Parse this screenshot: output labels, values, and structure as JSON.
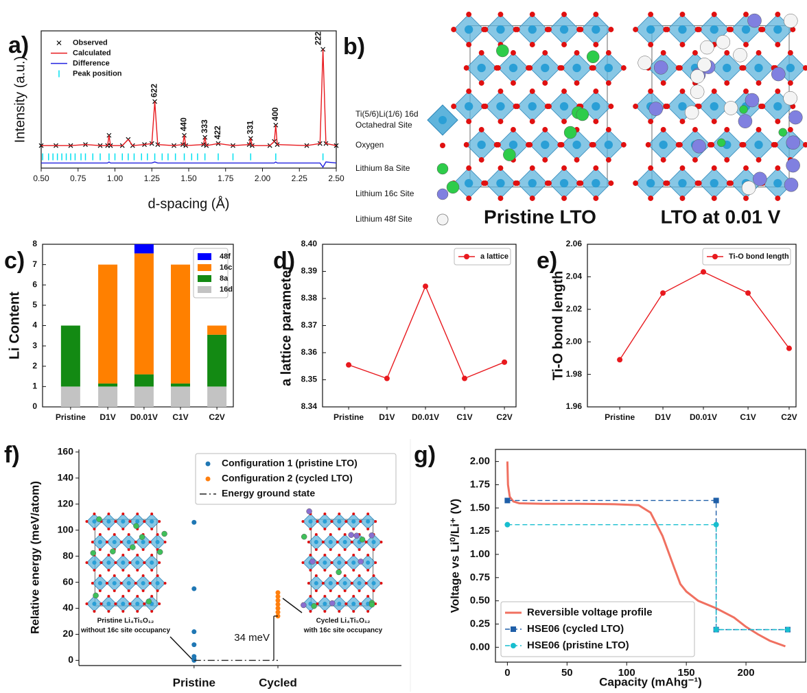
{
  "chart_data": [
    {
      "type": "line",
      "panel_label": "a)",
      "xlabel": "d-spacing (Å)",
      "ylabel": "Intensity (a.u.)",
      "xlim": [
        0.5,
        2.5
      ],
      "ylim": [
        -16,
        118
      ],
      "xticks": [
        {
          "value": 0.5,
          "label": "0.50"
        },
        0.75,
        {
          "value": 1,
          "label": "1.00"
        },
        1.25,
        {
          "value": 1.5,
          "label": "1.50"
        },
        1.75,
        {
          "value": 2,
          "label": "2.00"
        },
        2.25,
        {
          "value": 2.5,
          "label": "2.50"
        }
      ],
      "legend": "upper left",
      "x": [
        0.5,
        0.6,
        0.7,
        0.8,
        0.9,
        0.95,
        0.96,
        0.97,
        1.05,
        1.09,
        1.12,
        1.2,
        1.25,
        1.27,
        1.29,
        1.4,
        1.46,
        1.47,
        1.48,
        1.6,
        1.61,
        1.62,
        1.7,
        1.8,
        1.91,
        1.92,
        1.93,
        2.05,
        2.08,
        2.09,
        2.1,
        2.3,
        2.39,
        2.41,
        2.43,
        2.5
      ],
      "series": [
        {
          "name": "Observed",
          "color": "#000000",
          "marker": "x",
          "line": false,
          "values": [
            6,
            6,
            6,
            7,
            6,
            6,
            16,
            6,
            6,
            12,
            6,
            7,
            8,
            49,
            7,
            6,
            7,
            16,
            6,
            7,
            14,
            6,
            8,
            6,
            7,
            13,
            6,
            6,
            10,
            26,
            7,
            6,
            8,
            100,
            8,
            6
          ]
        },
        {
          "name": "Calculated",
          "color": "#e8191e",
          "marker": "none",
          "values": [
            6,
            6,
            6,
            7,
            6,
            6,
            16,
            6,
            6,
            12,
            6,
            7,
            8,
            49,
            7,
            6,
            7,
            16,
            6,
            7,
            14,
            6,
            8,
            6,
            7,
            13,
            6,
            6,
            10,
            26,
            7,
            6,
            8,
            100,
            8,
            6
          ]
        },
        {
          "name": "Difference",
          "color": "#2020e0",
          "marker": "none",
          "values": [
            -11,
            -11,
            -11,
            -11,
            -11,
            -11,
            -10,
            -11,
            -11,
            -11,
            -11,
            -11,
            -11,
            -10,
            -11,
            -11,
            -11,
            -11,
            -11,
            -11,
            -11,
            -11,
            -11,
            -11,
            -11,
            -11,
            -11,
            -11,
            -11,
            -10,
            -11,
            -11,
            -11,
            -15,
            -10,
            -11
          ]
        },
        {
          "name": "Peak position",
          "color": "#00e0f0",
          "marker": "tick",
          "x": [
            0.51,
            0.55,
            0.58,
            0.61,
            0.64,
            0.67,
            0.7,
            0.73,
            0.77,
            0.8,
            0.85,
            0.9,
            0.96,
            1.0,
            1.05,
            1.09,
            1.13,
            1.18,
            1.22,
            1.27,
            1.32,
            1.36,
            1.41,
            1.47,
            1.52,
            1.56,
            1.61,
            1.7,
            1.8,
            1.92,
            2.09,
            2.41
          ]
        }
      ],
      "annotations": [
        {
          "text": "622",
          "x": 1.27,
          "y": 49
        },
        {
          "text": "440",
          "x": 1.47,
          "y": 16
        },
        {
          "text": "333",
          "x": 1.61,
          "y": 14
        },
        {
          "text": "422",
          "x": 1.7,
          "y": 8
        },
        {
          "text": "331",
          "x": 1.92,
          "y": 13
        },
        {
          "text": "400",
          "x": 2.09,
          "y": 26
        },
        {
          "text": "222",
          "x": 2.38,
          "y": 100
        }
      ]
    },
    {
      "type": "bar",
      "stacked": true,
      "panel_label": "c)",
      "ylabel": "Li Content",
      "categories": [
        "Pristine",
        "D1V",
        "D0.01V",
        "C1V",
        "C2V"
      ],
      "ylim": [
        0,
        8
      ],
      "yticks": [
        0,
        1,
        2,
        3,
        4,
        5,
        6,
        7,
        8
      ],
      "legend": "upper right",
      "series": [
        {
          "name": "16d",
          "color": "#c3c3c3",
          "values": [
            1,
            1,
            1,
            1,
            1
          ]
        },
        {
          "name": "8a",
          "color": "#138a13",
          "values": [
            3,
            0.15,
            0.6,
            0.15,
            2.55
          ]
        },
        {
          "name": "16c",
          "color": "#ff8000",
          "values": [
            0,
            5.85,
            5.95,
            5.85,
            0.45
          ]
        },
        {
          "name": "48f",
          "color": "#0000ff",
          "values": [
            0,
            0,
            0.45,
            0,
            0
          ]
        }
      ]
    },
    {
      "type": "line",
      "panel_label": "d)",
      "ylabel": "a lattice parameter",
      "categories": [
        "Pristine",
        "D1V",
        "D0.01V",
        "C1V",
        "C2V"
      ],
      "ylim": [
        8.34,
        8.4
      ],
      "yticks": [
        8.34,
        8.35,
        8.36,
        8.37,
        8.38,
        8.39,
        {
          "value": 8.4,
          "label": "8.40"
        }
      ],
      "legend": "upper right",
      "series": [
        {
          "name": "a lattice",
          "color": "#e8191e",
          "marker": "circle",
          "values": [
            8.3555,
            8.3505,
            8.3845,
            8.3505,
            8.3565
          ]
        }
      ]
    },
    {
      "type": "line",
      "panel_label": "e)",
      "ylabel": "Ti-O bond length",
      "categories": [
        "Pristine",
        "D1V",
        "D0.01V",
        "C1V",
        "C2V"
      ],
      "ylim": [
        1.96,
        2.06
      ],
      "yticks": [
        1.96,
        1.98,
        {
          "value": 2,
          "label": "2.00"
        },
        2.02,
        2.04,
        2.06
      ],
      "legend": "upper right",
      "series": [
        {
          "name": "Ti-O bond length",
          "color": "#e8191e",
          "marker": "circle",
          "values": [
            1.989,
            2.03,
            2.043,
            2.03,
            1.996
          ]
        }
      ]
    },
    {
      "type": "scatter",
      "panel_label": "f)",
      "ylabel": "Relative energy (meV/atom)",
      "categories": [
        "Pristine",
        "Cycled"
      ],
      "ylim": [
        -4,
        162
      ],
      "yticks": [
        0,
        20,
        40,
        60,
        80,
        100,
        120,
        140,
        160
      ],
      "legend": "upper right",
      "series": [
        {
          "name": "Configuration 1 (pristine LTO)",
          "color": "#1f77b4",
          "marker": "circle",
          "line": false,
          "x": [
            "Pristine",
            "Pristine",
            "Pristine",
            "Pristine",
            "Pristine",
            "Pristine",
            "Pristine"
          ],
          "values": [
            106,
            55,
            22,
            12,
            3,
            1,
            0
          ]
        },
        {
          "name": "Configuration 2 (cycled LTO)",
          "color": "#ff7f0e",
          "marker": "circle",
          "line": false,
          "x": [
            "Cycled",
            "Cycled",
            "Cycled",
            "Cycled",
            "Cycled",
            "Cycled",
            "Cycled"
          ],
          "values": [
            52,
            49,
            46,
            43,
            40,
            37,
            34
          ]
        },
        {
          "name": "Energy ground state",
          "color": "#222222",
          "marker": "none",
          "dash": "dashdot",
          "x": [
            "Pristine",
            "Cycled"
          ],
          "values": [
            0,
            0
          ]
        }
      ],
      "annotations": [
        {
          "text": "34 meV",
          "x": "Cycled",
          "y": [
            0,
            34
          ]
        }
      ],
      "insets": [
        [
          "Pristine Li₄Ti₅O₁₂",
          "without 16c site occupancy"
        ],
        [
          "Cycled Li₄Ti₅O₁₂",
          "with 16c site occupancy"
        ]
      ]
    },
    {
      "type": "line",
      "panel_label": "g)",
      "xlabel": "Capacity (mAhg⁻¹)",
      "ylabel": "Voltage vs Li⁰/Li⁺ (V)",
      "xlim": [
        -10,
        250
      ],
      "ylim": [
        -0.16,
        2.13
      ],
      "xticks": [
        0,
        50,
        100,
        150,
        200
      ],
      "yticks": [
        {
          "value": 0,
          "label": "0.00"
        },
        0.25,
        {
          "value": 0.5,
          "label": "0.50"
        },
        0.75,
        {
          "value": 1,
          "label": "1.00"
        },
        1.25,
        {
          "value": 1.5,
          "label": "1.50"
        },
        1.75,
        {
          "value": 2,
          "label": "2.00"
        }
      ],
      "legend": "lower left",
      "series": [
        {
          "name": "Reversible voltage profile",
          "color": "#f07060",
          "marker": "none",
          "x": [
            0,
            0.5,
            2,
            5,
            10,
            30,
            60,
            90,
            110,
            120,
            130,
            140,
            145,
            150,
            160,
            175,
            190,
            200,
            210,
            220,
            233
          ],
          "values": [
            2.0,
            1.75,
            1.62,
            1.57,
            1.55,
            1.545,
            1.545,
            1.54,
            1.53,
            1.45,
            1.2,
            0.85,
            0.68,
            0.6,
            0.5,
            0.42,
            0.32,
            0.22,
            0.14,
            0.07,
            0.01
          ]
        },
        {
          "name": "HSE06 (cycled LTO)",
          "color": "#1f5fa8",
          "marker": "square",
          "dash": "dashed",
          "x": [
            0,
            175,
            175,
            235
          ],
          "values": [
            1.58,
            1.58,
            0.19,
            0.19
          ]
        },
        {
          "name": "HSE06 (pristine LTO)",
          "color": "#17becf",
          "marker": "circle",
          "dash": "dashed",
          "x": [
            0,
            175,
            175,
            235
          ],
          "values": [
            1.32,
            1.32,
            0.19,
            0.19
          ]
        }
      ]
    }
  ],
  "structure": {
    "panel_label": "b)",
    "legend": [
      [
        "Ti(5/6)Li(1/6) 16d",
        "Octahedral Site"
      ],
      [
        "Oxygen"
      ],
      [
        "Lithium 8a Site"
      ],
      [
        "Lithium 16c Site"
      ],
      [
        "Lithium 48f Site"
      ]
    ],
    "captions": [
      "Pristine LTO",
      "LTO at 0.01 V"
    ]
  }
}
